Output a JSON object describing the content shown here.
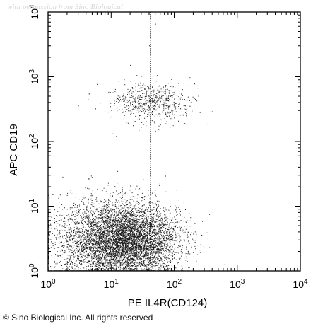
{
  "watermark": "with permission from Sino Biological",
  "copyright": "© Sino Biological Inc. All rights reserved",
  "chart_data": {
    "type": "scatter",
    "title": "",
    "xlabel": "PE IL4R(CD124)",
    "ylabel": "APC CD19",
    "x_scale": "log",
    "y_scale": "log",
    "xlim": [
      1,
      10000
    ],
    "ylim": [
      1,
      10000
    ],
    "x_ticks": [
      {
        "value": 1,
        "base": "10",
        "exp": "0"
      },
      {
        "value": 10,
        "base": "10",
        "exp": "1"
      },
      {
        "value": 100,
        "base": "10",
        "exp": "2"
      },
      {
        "value": 1000,
        "base": "10",
        "exp": "3"
      },
      {
        "value": 10000,
        "base": "10",
        "exp": "4"
      }
    ],
    "y_ticks": [
      {
        "value": 1,
        "base": "10",
        "exp": "0"
      },
      {
        "value": 10,
        "base": "10",
        "exp": "1"
      },
      {
        "value": 100,
        "base": "10",
        "exp": "2"
      },
      {
        "value": 1000,
        "base": "10",
        "exp": "3"
      },
      {
        "value": 10000,
        "base": "10",
        "exp": "4"
      }
    ],
    "quadrant_gates": {
      "x": 42,
      "y": 50
    },
    "grid": false,
    "populations": [
      {
        "x_center": 17,
        "y_center": 3,
        "x_spread_decades": 0.42,
        "y_spread_decades": 0.28,
        "events": 6000
      },
      {
        "x_center": 6,
        "y_center": 2.5,
        "x_spread_decades": 0.45,
        "y_spread_decades": 0.35,
        "events": 1500
      },
      {
        "x_center": 40,
        "y_center": 400,
        "x_spread_decades": 0.32,
        "y_spread_decades": 0.15,
        "events": 700
      }
    ],
    "outliers": [
      {
        "x": 50,
        "y": 6500
      },
      {
        "x": 40,
        "y": 3000
      },
      {
        "x": 20,
        "y": 1500
      },
      {
        "x": 12,
        "y": 120
      },
      {
        "x": 27,
        "y": 18
      }
    ],
    "marker_color": "#000000"
  }
}
